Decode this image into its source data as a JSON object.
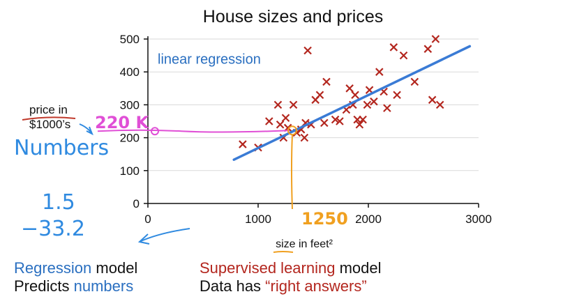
{
  "chart_data": {
    "type": "scatter",
    "title": "House sizes and prices",
    "xlabel": "size in feet²",
    "ylabel": "price in $1000’s",
    "xlim": [
      0,
      3000
    ],
    "ylim": [
      0,
      500
    ],
    "xticks": [
      "0",
      "1000",
      "2000",
      "3000"
    ],
    "yticks": [
      "0",
      "100",
      "200",
      "300",
      "400",
      "500"
    ],
    "grid": "horizontal",
    "points": [
      {
        "x": 860,
        "y": 180
      },
      {
        "x": 1000,
        "y": 170
      },
      {
        "x": 1100,
        "y": 250
      },
      {
        "x": 1180,
        "y": 300
      },
      {
        "x": 1200,
        "y": 240
      },
      {
        "x": 1230,
        "y": 200
      },
      {
        "x": 1250,
        "y": 260
      },
      {
        "x": 1270,
        "y": 230
      },
      {
        "x": 1320,
        "y": 300
      },
      {
        "x": 1350,
        "y": 215
      },
      {
        "x": 1390,
        "y": 225
      },
      {
        "x": 1420,
        "y": 200
      },
      {
        "x": 1430,
        "y": 245
      },
      {
        "x": 1450,
        "y": 465
      },
      {
        "x": 1480,
        "y": 240
      },
      {
        "x": 1520,
        "y": 315
      },
      {
        "x": 1560,
        "y": 330
      },
      {
        "x": 1600,
        "y": 245
      },
      {
        "x": 1620,
        "y": 370
      },
      {
        "x": 1700,
        "y": 255
      },
      {
        "x": 1740,
        "y": 250
      },
      {
        "x": 1800,
        "y": 285
      },
      {
        "x": 1830,
        "y": 350
      },
      {
        "x": 1860,
        "y": 300
      },
      {
        "x": 1880,
        "y": 330
      },
      {
        "x": 1900,
        "y": 255
      },
      {
        "x": 1920,
        "y": 240
      },
      {
        "x": 1950,
        "y": 255
      },
      {
        "x": 1990,
        "y": 300
      },
      {
        "x": 2010,
        "y": 345
      },
      {
        "x": 2050,
        "y": 310
      },
      {
        "x": 2100,
        "y": 400
      },
      {
        "x": 2140,
        "y": 340
      },
      {
        "x": 2170,
        "y": 290
      },
      {
        "x": 2230,
        "y": 475
      },
      {
        "x": 2260,
        "y": 330
      },
      {
        "x": 2320,
        "y": 450
      },
      {
        "x": 2420,
        "y": 370
      },
      {
        "x": 2540,
        "y": 470
      },
      {
        "x": 2580,
        "y": 315
      },
      {
        "x": 2610,
        "y": 500
      },
      {
        "x": 2650,
        "y": 300
      }
    ],
    "regression_line": {
      "label": "linear regression",
      "x": [
        780,
        2920
      ],
      "y": [
        133,
        478
      ]
    },
    "annotation": {
      "x_value": "1250",
      "y_value": "220 K",
      "x": 1310,
      "y": 222
    }
  },
  "notes": {
    "left_numbers": "Numbers",
    "value_1": "1.5",
    "value_2": "−33.2"
  },
  "captions": {
    "regression_1_colored": "Regression",
    "regression_1_rest": " model",
    "regression_2_plain": "Predicts ",
    "regression_2_colored": "numbers",
    "supervised_1_colored": "Supervised learning",
    "supervised_1_rest": " model",
    "supervised_2_plain": "Data has ",
    "supervised_2_colored": "“right answers”"
  },
  "colors": {
    "points": "#b3261e",
    "line": "#3a7bd5",
    "pink": "#e04fd6",
    "orange": "#f0a020",
    "blue_text": "#2a6fc0",
    "red_text": "#b3261e",
    "handwriting_blue": "#2f8ae0"
  }
}
